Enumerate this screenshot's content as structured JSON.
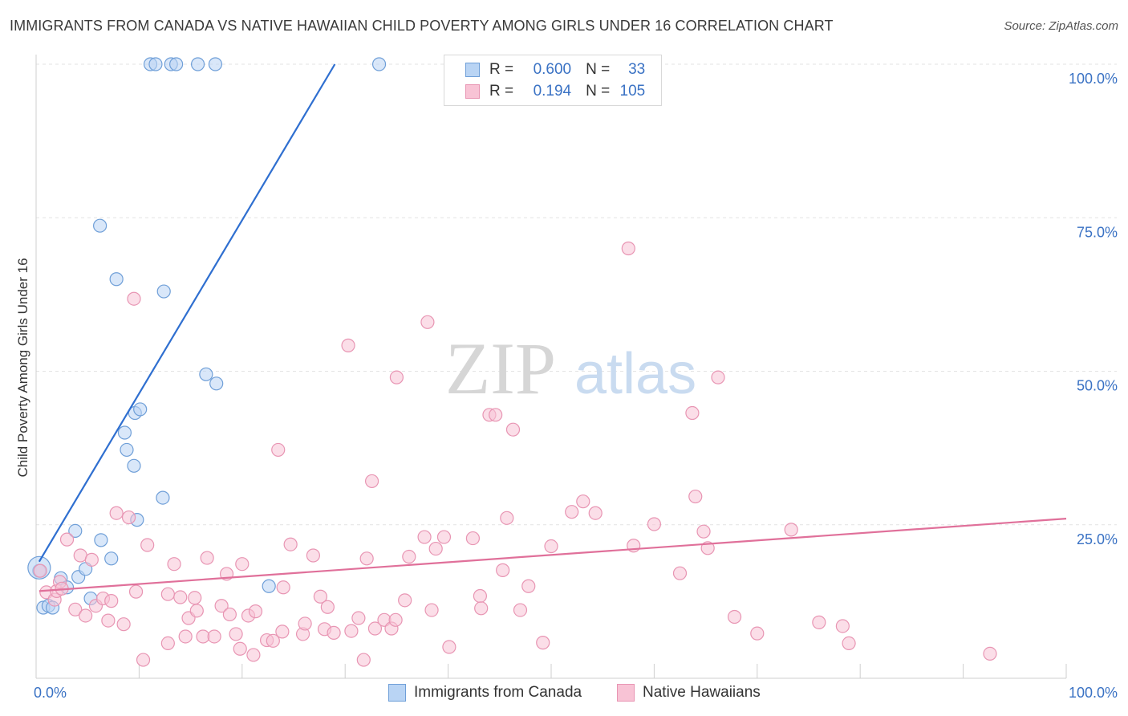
{
  "title": "IMMIGRANTS FROM CANADA VS NATIVE HAWAIIAN CHILD POVERTY AMONG GIRLS UNDER 16 CORRELATION CHART",
  "source": "Source: ZipAtlas.com",
  "watermark": {
    "part1": "ZIP",
    "part2": "atlas"
  },
  "colors": {
    "blue_fill": "#b9d4f4",
    "blue_stroke": "#6f9fd8",
    "blue_line": "#2f6fd0",
    "pink_fill": "#f8c3d5",
    "pink_stroke": "#e895b3",
    "pink_line": "#e0709a",
    "tick_label": "#3a72c4",
    "grid": "#e3e3e3"
  },
  "legend": {
    "rows": [
      {
        "r_label": "R =",
        "r_value": "0.600",
        "n_label": "N =",
        "n_value": "33"
      },
      {
        "r_label": "R =",
        "r_value": "0.194",
        "n_label": "N =",
        "n_value": "105"
      }
    ]
  },
  "bottom_legend": [
    "Immigrants from Canada",
    "Native Hawaiians"
  ],
  "chart_data": {
    "type": "scatter",
    "title": "IMMIGRANTS FROM CANADA VS NATIVE HAWAIIAN CHILD POVERTY AMONG GIRLS UNDER 16 CORRELATION CHART",
    "xlabel": "",
    "ylabel": "Child Poverty Among Girls Under 16",
    "xlim": [
      0,
      100
    ],
    "ylim": [
      0,
      100
    ],
    "x_tick_labels": [
      "0.0%",
      "100.0%"
    ],
    "y_tick_labels": [
      {
        "value": 100,
        "label": "100.0%"
      },
      {
        "value": 75,
        "label": "75.0%"
      },
      {
        "value": 50,
        "label": "50.0%"
      },
      {
        "value": 25,
        "label": "25.0%"
      }
    ],
    "grid": "horizontal dashed",
    "legend_position": "top-center",
    "series": [
      {
        "name": "Immigrants from Canada",
        "color": "#b9d4f4",
        "trend": {
          "x": [
            0.3,
            29
          ],
          "y": [
            19,
            100
          ]
        },
        "points": [
          [
            0.3,
            17.5
          ],
          [
            0.7,
            11.5
          ],
          [
            1.2,
            11.8
          ],
          [
            1.6,
            11.5
          ],
          [
            2.4,
            16.3
          ],
          [
            3.0,
            14.8
          ],
          [
            3.8,
            24
          ],
          [
            4.1,
            16.5
          ],
          [
            4.8,
            17.8
          ],
          [
            5.3,
            13
          ],
          [
            6.2,
            73.7
          ],
          [
            6.3,
            22.5
          ],
          [
            7.3,
            19.5
          ],
          [
            7.8,
            65
          ],
          [
            8.6,
            40
          ],
          [
            8.8,
            37.2
          ],
          [
            9.5,
            34.6
          ],
          [
            9.6,
            43.2
          ],
          [
            10.1,
            43.8
          ],
          [
            9.8,
            25.8
          ],
          [
            12.3,
            29.4
          ],
          [
            12.4,
            63
          ],
          [
            16.5,
            49.5
          ],
          [
            17.5,
            48
          ],
          [
            22.6,
            15
          ],
          [
            11.1,
            100
          ],
          [
            11.6,
            100
          ],
          [
            13.1,
            100
          ],
          [
            13.6,
            100
          ],
          [
            15.7,
            100
          ],
          [
            17.4,
            100
          ],
          [
            33.3,
            100
          ],
          [
            0.3,
            18
          ]
        ]
      },
      {
        "name": "Native Hawaiians",
        "color": "#f8c3d5",
        "trend": {
          "x": [
            0.3,
            100
          ],
          "y": [
            14.2,
            26
          ]
        },
        "points": [
          [
            0.4,
            17.5
          ],
          [
            1.0,
            14
          ],
          [
            1.8,
            12.8
          ],
          [
            2.0,
            14.2
          ],
          [
            2.3,
            15.7
          ],
          [
            2.5,
            14.6
          ],
          [
            3.0,
            22.6
          ],
          [
            3.8,
            11.2
          ],
          [
            4.3,
            20
          ],
          [
            4.8,
            10.2
          ],
          [
            5.4,
            19.3
          ],
          [
            5.8,
            11.8
          ],
          [
            6.5,
            13
          ],
          [
            7.0,
            9.4
          ],
          [
            7.3,
            12.6
          ],
          [
            7.8,
            26.9
          ],
          [
            8.5,
            8.8
          ],
          [
            9.0,
            26.2
          ],
          [
            9.5,
            61.8
          ],
          [
            9.7,
            14.1
          ],
          [
            10.4,
            3
          ],
          [
            10.8,
            21.7
          ],
          [
            12.8,
            13.7
          ],
          [
            12.8,
            5.7
          ],
          [
            13.4,
            18.6
          ],
          [
            14.0,
            13.2
          ],
          [
            14.5,
            6.8
          ],
          [
            14.8,
            9.8
          ],
          [
            15.4,
            13.1
          ],
          [
            15.6,
            11
          ],
          [
            16.2,
            6.8
          ],
          [
            16.6,
            19.6
          ],
          [
            17.3,
            6.8
          ],
          [
            18.0,
            11.8
          ],
          [
            18.5,
            17
          ],
          [
            18.8,
            10.4
          ],
          [
            19.4,
            7.2
          ],
          [
            20.0,
            18.6
          ],
          [
            19.8,
            4.8
          ],
          [
            20.6,
            10.2
          ],
          [
            21.1,
            3.8
          ],
          [
            21.3,
            10.9
          ],
          [
            22.4,
            6.2
          ],
          [
            23.0,
            6.1
          ],
          [
            23.5,
            37.2
          ],
          [
            23.9,
            7.6
          ],
          [
            24.0,
            14.8
          ],
          [
            24.7,
            21.8
          ],
          [
            25.9,
            7.2
          ],
          [
            26.1,
            8.9
          ],
          [
            26.9,
            20
          ],
          [
            27.6,
            13.3
          ],
          [
            28.0,
            8
          ],
          [
            28.3,
            11.6
          ],
          [
            28.9,
            7.4
          ],
          [
            30.3,
            54.2
          ],
          [
            30.6,
            7.7
          ],
          [
            31.3,
            9.8
          ],
          [
            32.1,
            19.5
          ],
          [
            31.8,
            3
          ],
          [
            32.6,
            32.1
          ],
          [
            32.9,
            8.1
          ],
          [
            33.8,
            9.5
          ],
          [
            34.5,
            8.1
          ],
          [
            34.9,
            9.5
          ],
          [
            35.0,
            49
          ],
          [
            35.8,
            12.7
          ],
          [
            36.2,
            19.8
          ],
          [
            37.7,
            23
          ],
          [
            38.0,
            58
          ],
          [
            38.4,
            11.1
          ],
          [
            38.8,
            21.1
          ],
          [
            39.6,
            23
          ],
          [
            40.1,
            5.1
          ],
          [
            42.4,
            22.8
          ],
          [
            43.1,
            13.4
          ],
          [
            43.2,
            11.4
          ],
          [
            44.0,
            42.9
          ],
          [
            44.6,
            42.9
          ],
          [
            45.3,
            17.6
          ],
          [
            45.7,
            26.1
          ],
          [
            46.3,
            40.5
          ],
          [
            47.0,
            11.1
          ],
          [
            47.8,
            15
          ],
          [
            49.2,
            5.8
          ],
          [
            50.0,
            21.5
          ],
          [
            52.0,
            27.1
          ],
          [
            53.1,
            28.8
          ],
          [
            54.3,
            26.9
          ],
          [
            57.5,
            70
          ],
          [
            58.0,
            21.6
          ],
          [
            60.0,
            25.1
          ],
          [
            62.5,
            17.1
          ],
          [
            63.7,
            43.2
          ],
          [
            64.0,
            29.6
          ],
          [
            64.8,
            23.9
          ],
          [
            65.2,
            21.2
          ],
          [
            66.2,
            49
          ],
          [
            67.8,
            10
          ],
          [
            70.0,
            7.3
          ],
          [
            73.3,
            24.2
          ],
          [
            76.0,
            9.1
          ],
          [
            78.3,
            8.5
          ],
          [
            78.9,
            5.7
          ],
          [
            92.6,
            4
          ]
        ]
      }
    ]
  }
}
